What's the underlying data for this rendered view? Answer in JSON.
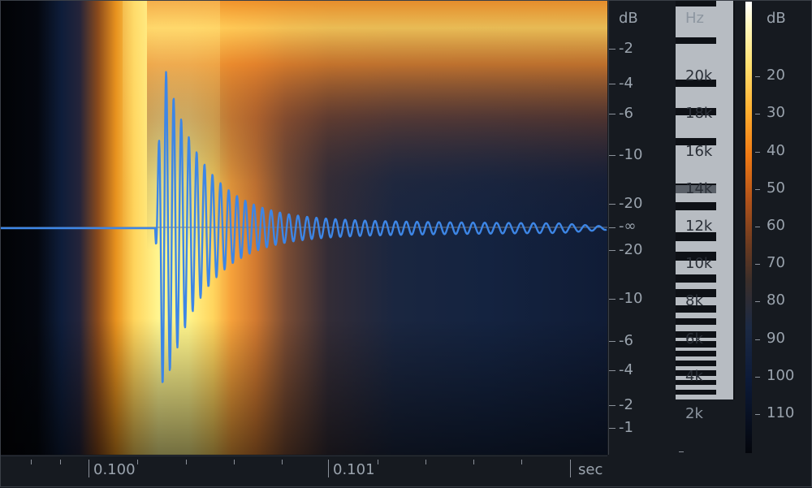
{
  "view": "spectrogram-waveform",
  "time_axis": {
    "unit_label": "sec",
    "labels": [
      "0.100",
      "0.101"
    ]
  },
  "amplitude_axis": {
    "unit_label": "dB",
    "labels_top": [
      "-2",
      "-4",
      "-6",
      "-10",
      "-20"
    ],
    "center_label": "-∞",
    "labels_bottom": [
      "-20",
      "-10",
      "-6",
      "-4",
      "-2",
      "-1"
    ]
  },
  "frequency_axis": {
    "unit_label": "Hz",
    "labels": [
      "20k",
      "18k",
      "16k",
      "14k",
      "12k",
      "10k",
      "8k",
      "6k",
      "4k",
      "2k"
    ]
  },
  "level_scale": {
    "unit_label": "dB",
    "labels": [
      "20",
      "30",
      "40",
      "50",
      "60",
      "70",
      "80",
      "90",
      "100",
      "110"
    ]
  },
  "colors": {
    "waveform": "#3d86e6",
    "background": "#161a20",
    "hot": "#fff68a",
    "warm": "#f08a20",
    "cold": "#0c1a38"
  }
}
